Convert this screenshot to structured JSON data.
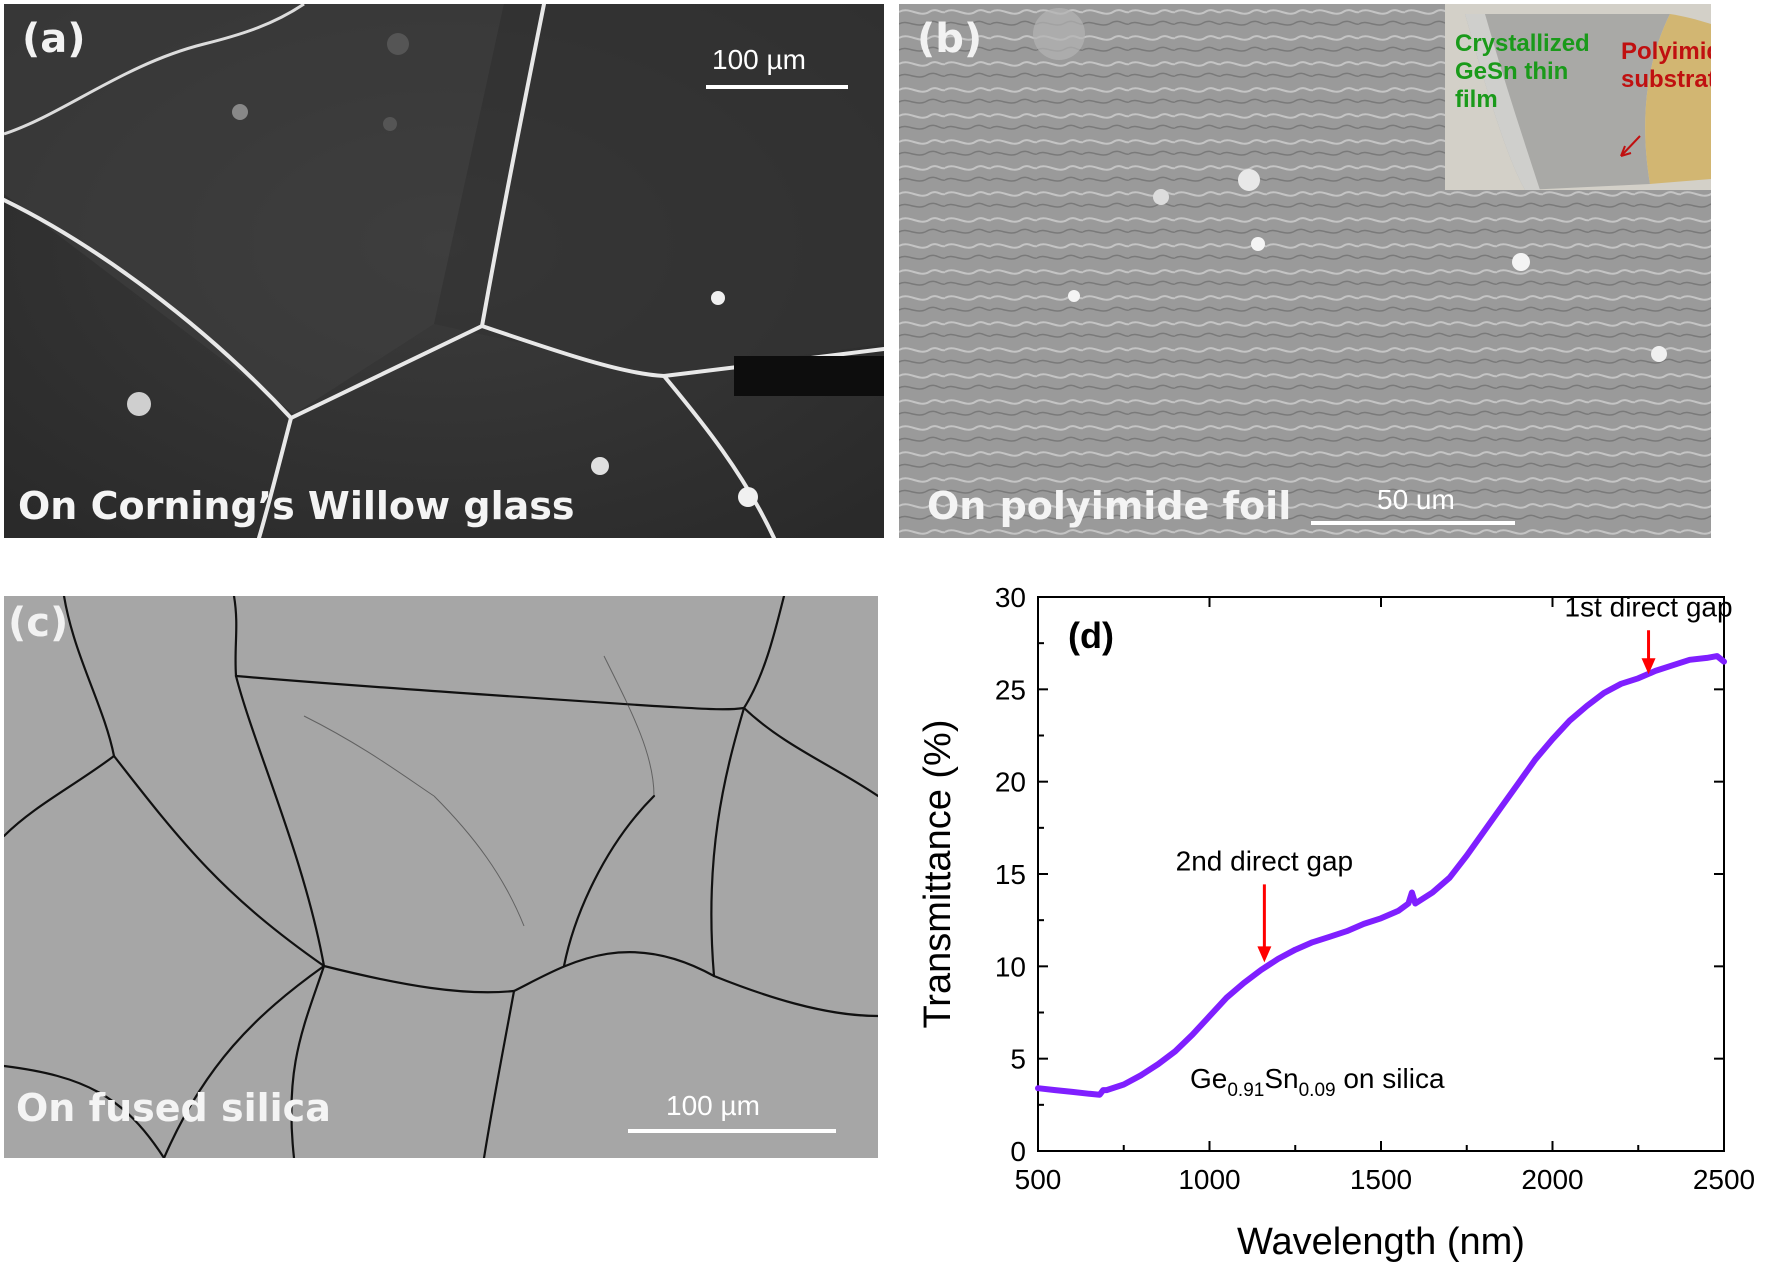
{
  "panels": {
    "a": {
      "label": "(a)",
      "caption": "On  Corning’s Willow glass",
      "scale": "100 µm"
    },
    "b": {
      "label": "(b)",
      "caption": "On  polyimide foil",
      "scale": "50 um",
      "inset": {
        "film": "Crystallized GeSn thin film",
        "substrate": "Polyimide substrate"
      }
    },
    "c": {
      "label": "(c)",
      "caption": "On  fused silica",
      "scale": "100 µm"
    },
    "d": {
      "label": "(d)"
    }
  },
  "colors": {
    "curve": "#7f1fff",
    "arrow": "#ff0000",
    "inset_film": "#1a9a1a",
    "inset_substrate": "#c01010"
  },
  "chart_data": {
    "type": "line",
    "xlabel": "Wavelength (nm)",
    "ylabel": "Transmittance (%)",
    "xlim": [
      500,
      2500
    ],
    "ylim": [
      0,
      30
    ],
    "xticks": [
      500,
      1000,
      1500,
      2000,
      2500
    ],
    "yticks": [
      0,
      5,
      10,
      15,
      20,
      25,
      30
    ],
    "sample_label": {
      "base1": "Ge",
      "sub1": "0.91",
      "base2": "Sn",
      "sub2": "0.09",
      "rest": " on silica"
    },
    "annotations": [
      {
        "text": "2nd direct gap",
        "x": 1160,
        "y": 10.0
      },
      {
        "text": "1st direct gap",
        "x": 2280,
        "y": 25.6
      }
    ],
    "series": [
      {
        "x": [
          500,
          550,
          600,
          650,
          680,
          690,
          700,
          750,
          800,
          850,
          900,
          950,
          1000,
          1050,
          1100,
          1150,
          1200,
          1250,
          1300,
          1350,
          1400,
          1450,
          1500,
          1550,
          1580,
          1590,
          1600,
          1650,
          1700,
          1750,
          1800,
          1850,
          1900,
          1950,
          2000,
          2050,
          2100,
          2150,
          2200,
          2250,
          2300,
          2350,
          2400,
          2450,
          2480,
          2500
        ],
        "y": [
          3.4,
          3.3,
          3.2,
          3.1,
          3.05,
          3.3,
          3.3,
          3.6,
          4.1,
          4.7,
          5.4,
          6.3,
          7.3,
          8.3,
          9.1,
          9.8,
          10.4,
          10.9,
          11.3,
          11.6,
          11.9,
          12.3,
          12.6,
          13.0,
          13.4,
          14.0,
          13.4,
          14.0,
          14.8,
          16.0,
          17.3,
          18.6,
          19.9,
          21.2,
          22.3,
          23.3,
          24.1,
          24.8,
          25.3,
          25.6,
          26.0,
          26.3,
          26.6,
          26.7,
          26.8,
          26.5
        ]
      }
    ]
  }
}
